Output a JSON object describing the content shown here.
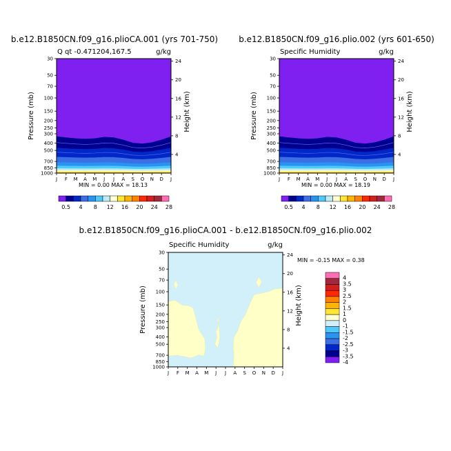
{
  "chart_data": [
    {
      "type": "heatmap",
      "title": "b.e12.B1850CN.f09_g16.plioCA.001 (yrs 701-750)",
      "subtitle_left": "Q  qt -0.471204,167.5",
      "subtitle_right": "g/kg",
      "ylabel": "Pressure (mb)",
      "ylabel_right": "Height (km)",
      "x_ticks": [
        "J",
        "F",
        "M",
        "A",
        "M",
        "J",
        "J",
        "A",
        "S",
        "O",
        "N",
        "D",
        "J"
      ],
      "y_ticks": [
        "30",
        "50",
        "70",
        "100",
        "150",
        "200",
        "250",
        "300",
        "400",
        "500",
        "700",
        "850",
        "1000"
      ],
      "y_ticks_right": [
        "24",
        "20",
        "16",
        "12",
        "8",
        "4"
      ],
      "min_max_text": "MIN =    0.00  MAX =    18.13",
      "colorbar_labels": [
        "0.5",
        "4",
        "8",
        "12",
        "16",
        "20",
        "24",
        "28"
      ],
      "tropopause_mb": [
        325,
        335,
        345,
        350,
        345,
        330,
        335,
        360,
        395,
        405,
        390,
        360,
        325
      ]
    },
    {
      "type": "heatmap",
      "title": "b.e12.B1850CN.f09_g16.plio.002 (yrs 601-650)",
      "subtitle_left": "Specific Humidity",
      "subtitle_right": "g/kg",
      "ylabel": "Pressure (mb)",
      "ylabel_right": "Height (km)",
      "x_ticks": [
        "J",
        "F",
        "M",
        "A",
        "M",
        "J",
        "J",
        "A",
        "S",
        "O",
        "N",
        "D",
        "J"
      ],
      "y_ticks": [
        "30",
        "50",
        "70",
        "100",
        "150",
        "200",
        "250",
        "300",
        "400",
        "500",
        "700",
        "850",
        "1000"
      ],
      "y_ticks_right": [
        "24",
        "20",
        "16",
        "12",
        "8",
        "4"
      ],
      "min_max_text": "MIN =    0.00  MAX =    18.19",
      "colorbar_labels": [
        "0.5",
        "4",
        "8",
        "12",
        "16",
        "20",
        "24",
        "28"
      ],
      "tropopause_mb": [
        325,
        335,
        345,
        350,
        345,
        330,
        335,
        360,
        395,
        405,
        390,
        360,
        325
      ]
    },
    {
      "type": "heatmap",
      "title": "b.e12.B1850CN.f09_g16.plioCA.001 - b.e12.B1850CN.f09_g16.plio.002",
      "subtitle_left": "Specific Humidity",
      "subtitle_right": "g/kg",
      "ylabel": "Pressure (mb)",
      "ylabel_right": "Height (km)",
      "x_ticks": [
        "J",
        "F",
        "M",
        "A",
        "M",
        "J",
        "J",
        "A",
        "S",
        "O",
        "N",
        "D",
        "J"
      ],
      "y_ticks": [
        "30",
        "50",
        "70",
        "100",
        "150",
        "200",
        "250",
        "300",
        "400",
        "500",
        "700",
        "850",
        "1000"
      ],
      "y_ticks_right": [
        "24",
        "20",
        "16",
        "12",
        "8",
        "4"
      ],
      "min_max_text": "MIN =   -0.15  MAX =    0.38",
      "colorbar_labels": [
        "4",
        "3.5",
        "3",
        "2.5",
        "2",
        "1.5",
        "1",
        "0",
        "-1",
        "-1.5",
        "-2",
        "-2.5",
        "-3",
        "-3.5",
        "-4"
      ],
      "field_values": {
        "lower_region": "0 to 1",
        "upper_region": "-1 to 0"
      }
    }
  ],
  "colors": {
    "abs_scale": [
      "#8020f0",
      "#000090",
      "#0028c8",
      "#3c6ee6",
      "#2894f0",
      "#50c8fa",
      "#bbebf5",
      "#ffffd2",
      "#ffe632",
      "#ffb400",
      "#ff8200",
      "#ff2800",
      "#d21e1e",
      "#a0283c",
      "#ff6eb4"
    ],
    "diff_scale": [
      "#ff6eb4",
      "#a0283c",
      "#d21e1e",
      "#ff2800",
      "#ff8200",
      "#ffb400",
      "#ffe632",
      "#ffffd2",
      "#d2f0fa",
      "#50c8fa",
      "#2894f0",
      "#3c6ee6",
      "#0028c8",
      "#000090",
      "#8020f0"
    ],
    "diff_neg_fill": "#d2f0fa",
    "diff_pos_fill": "#ffffc8"
  }
}
